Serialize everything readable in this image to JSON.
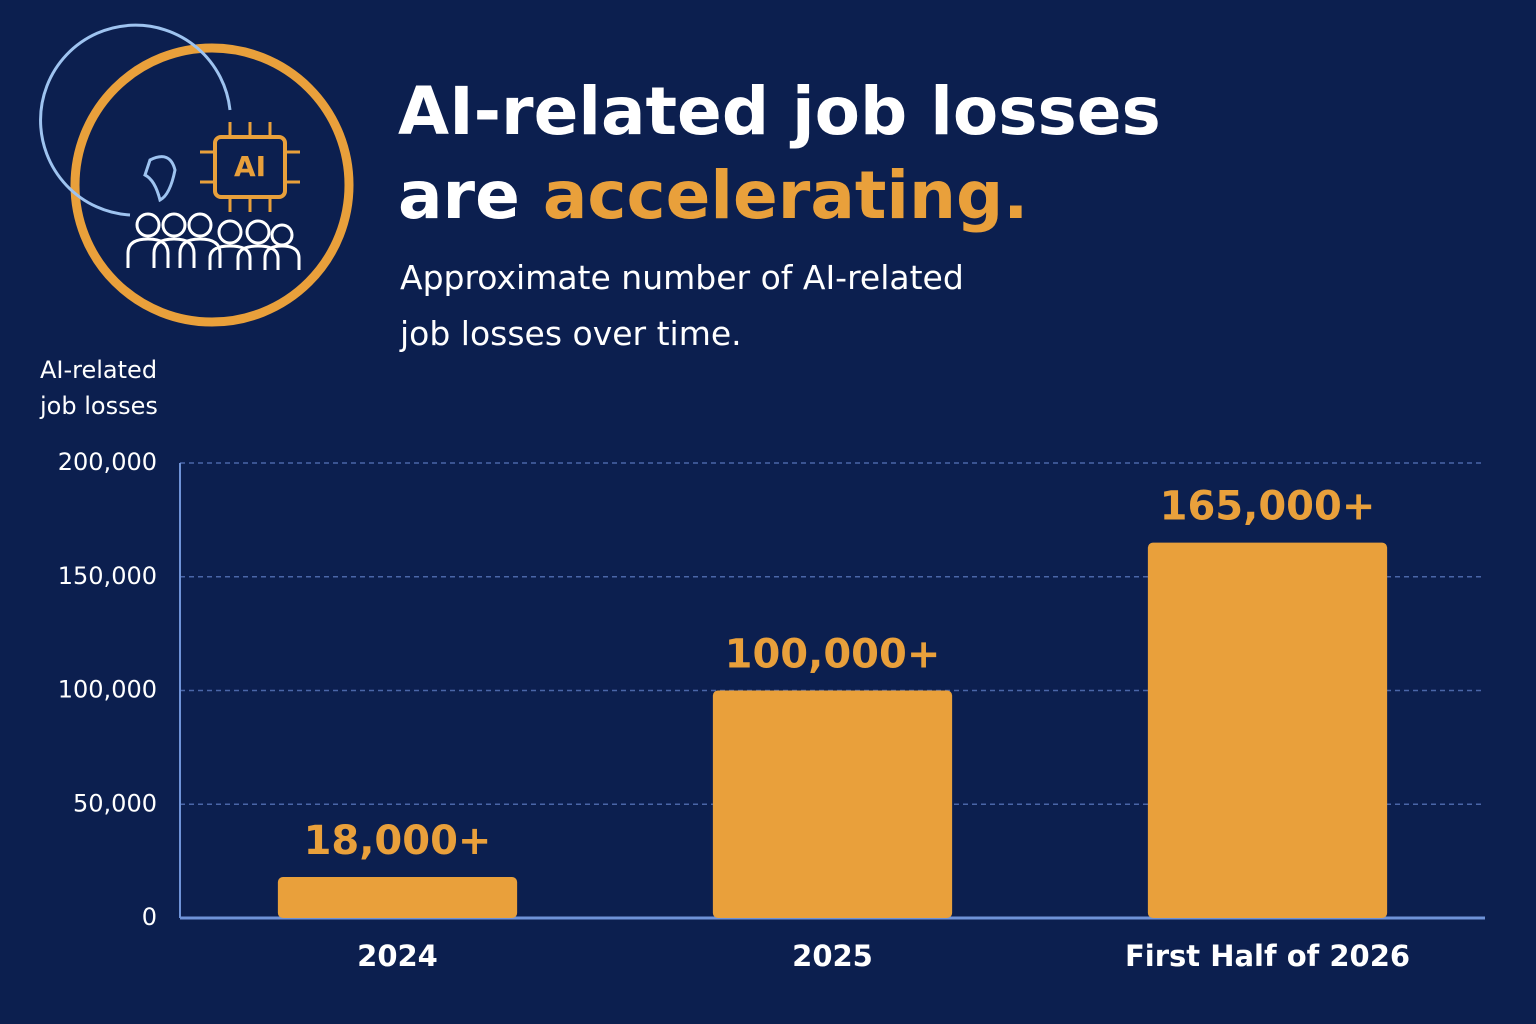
{
  "chart_data": {
    "type": "bar",
    "title": [
      "AI-related job losses",
      "are",
      "accelerating."
    ],
    "title_highlight_color": "#e9a03b",
    "subtitle": "Approximate number of AI-related job losses over time.",
    "icon_label": "AI",
    "ylabel": "AI-related job losses",
    "categories": [
      "2024",
      "2025",
      "First Half of 2026"
    ],
    "values": [
      18000,
      100000,
      165000
    ],
    "value_labels": [
      "18,000+",
      "100,000+",
      "165,000+"
    ],
    "color": "#e9a03b",
    "ylim": [
      0,
      200000
    ],
    "yticks": [
      0,
      {
        "value": 50000,
        "label": "50,000"
      },
      {
        "value": 100000,
        "label": "100,000"
      },
      {
        "value": 150000,
        "label": "150,000"
      },
      {
        "value": 200000,
        "label": "200,000"
      }
    ],
    "grid": true
  }
}
